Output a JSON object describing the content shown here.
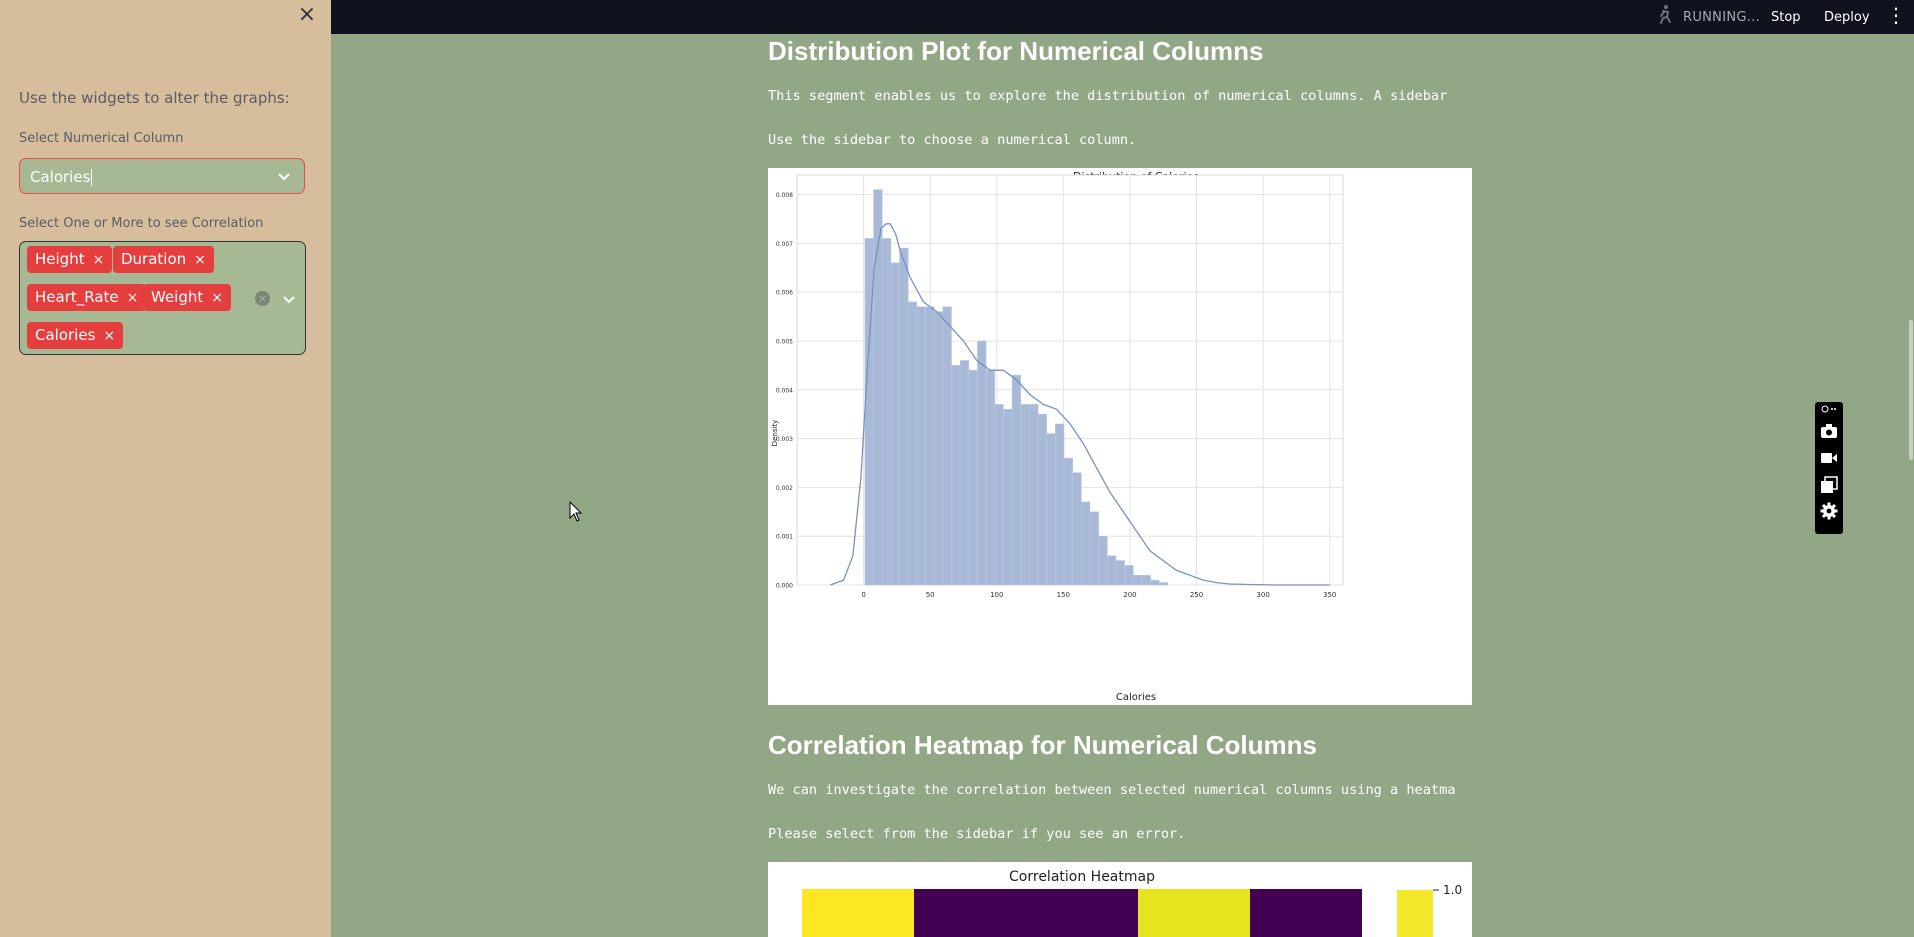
{
  "sidebar": {
    "close_icon": "×",
    "caption": "Use the widgets to alter the graphs:",
    "numeric_select": {
      "label": "Select Numerical Column",
      "value": "Calories"
    },
    "multi_select": {
      "label": "Select One or More to see Correlation",
      "tags": [
        "Height",
        "Duration",
        "Heart_Rate",
        "Weight",
        "Calories"
      ],
      "remove_glyph": "×",
      "clear_glyph": "×"
    }
  },
  "topbar": {
    "status": "RUNNING...",
    "stop_label": "Stop",
    "deploy_label": "Deploy",
    "menu_glyph": "⋮"
  },
  "main": {
    "dist_heading": "Distribution Plot for Numerical Columns",
    "dist_text": "This segment enables us to explore the distribution of numerical columns. A sidebar",
    "dist_hint": "Use the sidebar to choose a numerical column.",
    "corr_heading": "Correlation Heatmap for Numerical Columns",
    "corr_text": "We can investigate the correlation between selected numerical columns using a heatma",
    "corr_hint": "Please select from the sidebar if you see an error."
  },
  "chart_data": [
    {
      "type": "bar",
      "title": "Distribution of Calories",
      "xlabel": "Calories",
      "ylabel": "Density",
      "xlim": [
        -50,
        360
      ],
      "ylim": [
        0,
        0.0084
      ],
      "xticks": [
        0,
        50,
        100,
        150,
        200,
        250,
        300,
        350
      ],
      "yticks": [
        0.0,
        0.001,
        0.002,
        0.003,
        0.004,
        0.005,
        0.006,
        0.007,
        0.008
      ],
      "ytick_labels": [
        "0.000",
        "0.001",
        "0.002",
        "0.003",
        "0.004",
        "0.005",
        "0.006",
        "0.007",
        "0.008"
      ],
      "grid": true,
      "bin_start": 1,
      "bin_width": 6.5,
      "values": [
        0.0071,
        0.0081,
        0.0071,
        0.0066,
        0.0069,
        0.0058,
        0.0057,
        0.0057,
        0.0056,
        0.0057,
        0.0045,
        0.0046,
        0.0044,
        0.005,
        0.0044,
        0.0037,
        0.0036,
        0.0043,
        0.0037,
        0.0037,
        0.0035,
        0.0031,
        0.0033,
        0.0026,
        0.0023,
        0.0017,
        0.0015,
        0.001,
        0.0006,
        0.0005,
        0.0004,
        0.0002,
        0.0002,
        0.0001,
        5e-05
      ],
      "kde_x": [
        -25,
        -15,
        -8,
        -2,
        3,
        8,
        13,
        17,
        20,
        24,
        28,
        35,
        45,
        55,
        65,
        75,
        85,
        95,
        105,
        115,
        125,
        135,
        145,
        155,
        165,
        175,
        185,
        195,
        205,
        215,
        225,
        235,
        245,
        255,
        265,
        275,
        290,
        310,
        330,
        350
      ],
      "kde_y": [
        0.0,
        0.0001,
        0.0006,
        0.0022,
        0.0045,
        0.0065,
        0.0073,
        0.0074,
        0.0074,
        0.0072,
        0.0068,
        0.0063,
        0.0058,
        0.0056,
        0.0053,
        0.005,
        0.0046,
        0.0044,
        0.0044,
        0.0042,
        0.0039,
        0.0037,
        0.0036,
        0.0033,
        0.0029,
        0.0024,
        0.0019,
        0.0015,
        0.0011,
        0.0007,
        0.0005,
        0.0003,
        0.0002,
        0.0001,
        5e-05,
        2e-05,
        1e-05,
        0.0,
        0.0,
        0.0
      ],
      "bar_color": "#a8b9d8",
      "line_color": "#7a91c0"
    },
    {
      "type": "heatmap",
      "title": "Correlation Heatmap",
      "colorbar_tick": "1.0",
      "visible_cells_top_row": [
        1.0,
        -0.3,
        -0.3,
        0.95,
        -0.3
      ],
      "colors": {
        "high": "#fde725",
        "low": "#440154",
        "near_high": "#e5e41e"
      }
    }
  ],
  "tools": {
    "icons": [
      "pin-icon",
      "camera-icon",
      "video-icon",
      "layers-icon",
      "gear-icon"
    ]
  }
}
